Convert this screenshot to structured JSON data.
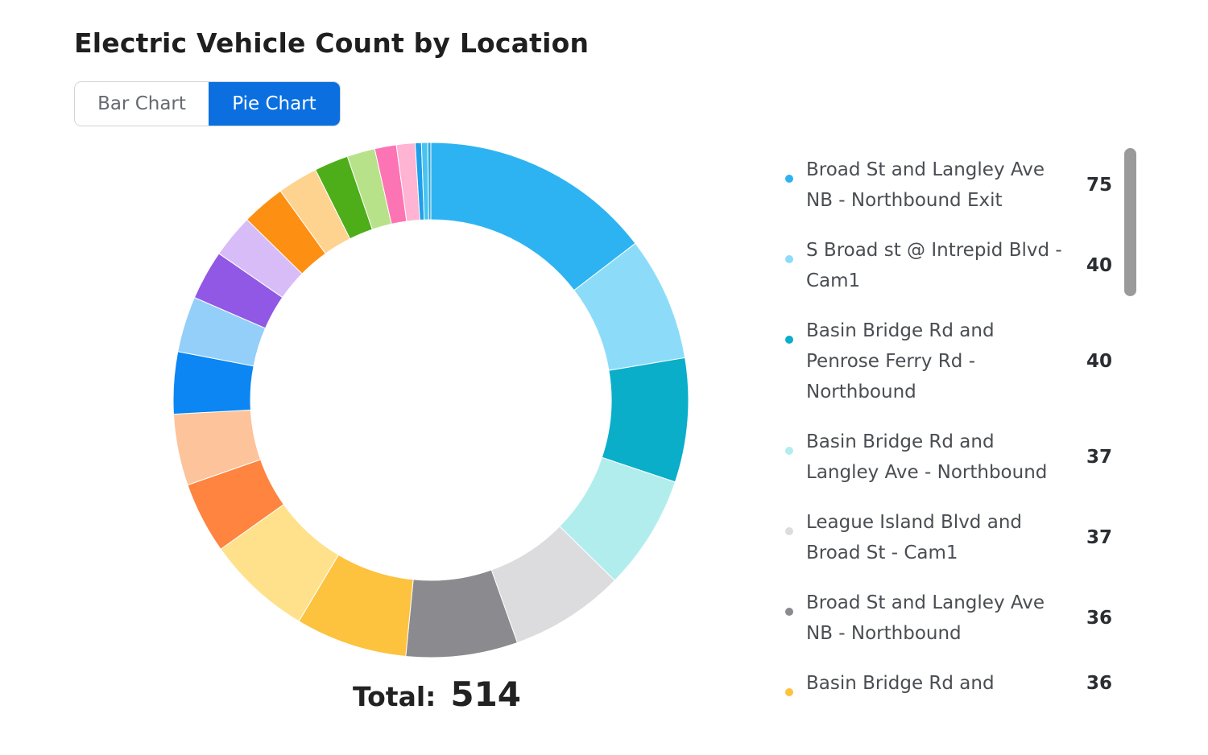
{
  "title": "Electric Vehicle Count by Location",
  "toggle": {
    "bar_label": "Bar Chart",
    "pie_label": "Pie Chart",
    "active": "pie"
  },
  "total": {
    "label": "Total:",
    "value": "514"
  },
  "chart_data": {
    "type": "pie",
    "title": "Electric Vehicle Count by Location",
    "donut": true,
    "total": 514,
    "legend_position": "right",
    "slices": [
      {
        "name": "Broad St and Langley Ave NB - Northbound Exit",
        "value": 75,
        "color": "#2db3f2"
      },
      {
        "name": "S Broad st @ Intrepid Blvd - Cam1",
        "value": 40,
        "color": "#8cdcf9"
      },
      {
        "name": "Basin Bridge Rd and Penrose Ferry Rd - Northbound",
        "value": 40,
        "color": "#0aaec9"
      },
      {
        "name": "Basin Bridge Rd and Langley Ave - Northbound",
        "value": 37,
        "color": "#b2eded"
      },
      {
        "name": "League Island Blvd and Broad St - Cam1",
        "value": 37,
        "color": "#dcdcde"
      },
      {
        "name": "Broad St and Langley Ave NB - Northbound",
        "value": 36,
        "color": "#8b8a8f"
      },
      {
        "name": "Basin Bridge Rd and",
        "value": 36,
        "color": "#fdc23e"
      },
      {
        "name": "",
        "value": 34,
        "color": "#fee18a"
      },
      {
        "name": "",
        "value": 23,
        "color": "#fe8440"
      },
      {
        "name": "",
        "value": 23,
        "color": "#fdc39a"
      },
      {
        "name": "",
        "value": 20,
        "color": "#0b86f2"
      },
      {
        "name": "",
        "value": 18,
        "color": "#94cff9"
      },
      {
        "name": "",
        "value": 16,
        "color": "#9058e4"
      },
      {
        "name": "",
        "value": 14,
        "color": "#d7bcf8"
      },
      {
        "name": "",
        "value": 14,
        "color": "#fd8f12"
      },
      {
        "name": "",
        "value": 13,
        "color": "#fdd38f"
      },
      {
        "name": "",
        "value": 11,
        "color": "#4eae19"
      },
      {
        "name": "",
        "value": 9,
        "color": "#b8e28a"
      },
      {
        "name": "",
        "value": 7,
        "color": "#fc74b4"
      },
      {
        "name": "",
        "value": 6,
        "color": "#feb4d2"
      },
      {
        "name": "",
        "value": 2,
        "color": "#1f9fea"
      },
      {
        "name": "",
        "value": 2,
        "color": "#48c4f0"
      },
      {
        "name": "",
        "value": 1,
        "color": "#30a8d8"
      }
    ]
  },
  "legend": [
    {
      "name": "Broad St and Langley Ave NB - Northbound Exit",
      "count": "75",
      "color": "#2db3f2"
    },
    {
      "name": "S Broad st @ Intrepid Blvd - Cam1",
      "count": "40",
      "color": "#8cdcf9"
    },
    {
      "name": "Basin Bridge Rd and Penrose Ferry Rd - Northbound",
      "count": "40",
      "color": "#0aaec9"
    },
    {
      "name": "Basin Bridge Rd and Langley Ave - Northbound",
      "count": "37",
      "color": "#b2eded"
    },
    {
      "name": "League Island Blvd and Broad St - Cam1",
      "count": "37",
      "color": "#dcdcde"
    },
    {
      "name": "Broad St and Langley Ave NB - Northbound",
      "count": "36",
      "color": "#8b8a8f"
    },
    {
      "name": "Basin Bridge Rd and",
      "count": "36",
      "color": "#fdc23e"
    }
  ]
}
